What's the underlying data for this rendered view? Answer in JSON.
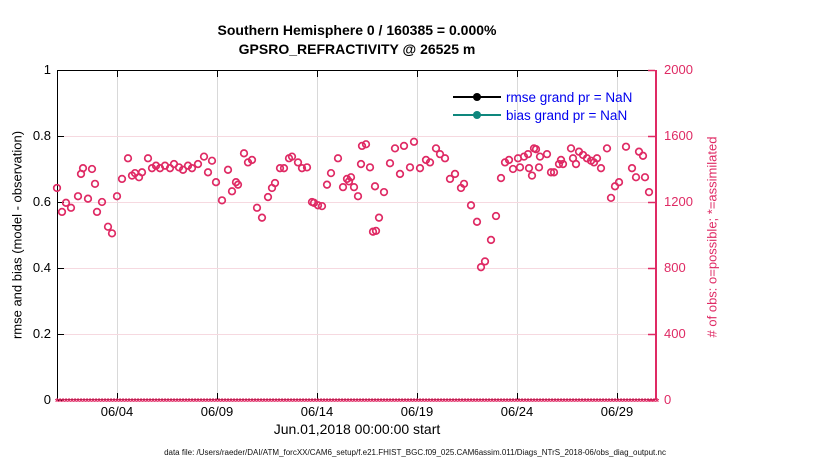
{
  "title": {
    "line1": "Southern Hemisphere 0 / 160385 = 0.000%",
    "line2": "GPSRO_REFRACTIVITY @ 26525 m"
  },
  "axes": {
    "left": {
      "label": "rmse and bias (model - observation)",
      "range": [
        0,
        1
      ],
      "ticks": [
        {
          "value": 0,
          "label": "0"
        },
        {
          "value": 0.2,
          "label": "0.2"
        },
        {
          "value": 0.4,
          "label": "0.4"
        },
        {
          "value": 0.6,
          "label": "0.6"
        },
        {
          "value": 0.8,
          "label": "0.8"
        },
        {
          "value": 1,
          "label": "1"
        }
      ]
    },
    "right": {
      "label": "# of obs: o=possible; *=assimilated",
      "range": [
        0,
        2000
      ],
      "ticks": [
        {
          "value": 0,
          "label": "0"
        },
        {
          "value": 400,
          "label": "400"
        },
        {
          "value": 800,
          "label": "800"
        },
        {
          "value": 1200,
          "label": "1200"
        },
        {
          "value": 1600,
          "label": "1600"
        },
        {
          "value": 2000,
          "label": "2000"
        }
      ]
    },
    "x": {
      "label": "Jun.01,2018 00:00:00 start",
      "range_days": [
        1,
        31
      ],
      "ticks": [
        {
          "day": 4,
          "label": "06/04"
        },
        {
          "day": 9,
          "label": "06/09"
        },
        {
          "day": 14,
          "label": "06/14"
        },
        {
          "day": 19,
          "label": "06/19"
        },
        {
          "day": 24,
          "label": "06/24"
        },
        {
          "day": 29,
          "label": "06/29"
        }
      ]
    }
  },
  "legend": [
    {
      "label": "rmse grand pr = NaN",
      "color": "#000000"
    },
    {
      "label": "bias grand pr = NaN",
      "color": "#0e877d"
    }
  ],
  "footer": "data file: /Users/raeder/DAI/ATM_forcXX/CAM6_setup/f.e21.FHIST_BGC.f09_025.CAM6assim.011/Diags_NTrS_2018-06/obs_diag_output.nc",
  "colors": {
    "accent_pink": "#df2a64",
    "legend_text_blue": "#0000ee",
    "bias_teal": "#0e877d",
    "rmse_black": "#000000",
    "grid_horizontal": "#f6d9e0",
    "grid_vertical": "#d9d9d9",
    "axis_black": "#000000"
  },
  "chart_data": {
    "type": "scatter",
    "title": "Southern Hemisphere 0 / 160385 = 0.000% — GPSRO_REFRACTIVITY @ 26525 m",
    "xlabel": "Jun.01,2018 00:00:00 start",
    "x_units": "day of June 2018, 6-hourly bins",
    "x_range_days": [
      1,
      31
    ],
    "ylabel_left": "rmse and bias (model - observation)",
    "ylim_left": [
      0,
      1
    ],
    "ylabel_right": "# of obs: o=possible; *=assimilated",
    "ylim_right": [
      0,
      2000
    ],
    "grid": true,
    "legend_position": "top-right inside",
    "series": [
      {
        "name": "possible-observations",
        "marker": "o",
        "axis": "right",
        "points": [
          [
            1.0,
            1285
          ],
          [
            1.25,
            1140
          ],
          [
            1.45,
            1195
          ],
          [
            1.7,
            1165
          ],
          [
            2.05,
            1235
          ],
          [
            2.2,
            1370
          ],
          [
            2.3,
            1405
          ],
          [
            2.55,
            1220
          ],
          [
            2.75,
            1400
          ],
          [
            2.9,
            1310
          ],
          [
            3.0,
            1140
          ],
          [
            3.25,
            1200
          ],
          [
            3.55,
            1050
          ],
          [
            3.75,
            1010
          ],
          [
            4.0,
            1235
          ],
          [
            4.25,
            1340
          ],
          [
            4.55,
            1465
          ],
          [
            4.75,
            1360
          ],
          [
            4.9,
            1375
          ],
          [
            5.1,
            1350
          ],
          [
            5.25,
            1380
          ],
          [
            5.55,
            1465
          ],
          [
            5.75,
            1405
          ],
          [
            5.95,
            1420
          ],
          [
            6.15,
            1405
          ],
          [
            6.4,
            1420
          ],
          [
            6.65,
            1405
          ],
          [
            6.85,
            1430
          ],
          [
            7.1,
            1410
          ],
          [
            7.3,
            1395
          ],
          [
            7.55,
            1420
          ],
          [
            7.75,
            1405
          ],
          [
            8.05,
            1430
          ],
          [
            8.35,
            1475
          ],
          [
            8.55,
            1380
          ],
          [
            8.75,
            1450
          ],
          [
            8.95,
            1320
          ],
          [
            9.25,
            1210
          ],
          [
            9.55,
            1395
          ],
          [
            9.75,
            1265
          ],
          [
            9.95,
            1320
          ],
          [
            10.05,
            1305
          ],
          [
            10.35,
            1495
          ],
          [
            10.55,
            1440
          ],
          [
            10.75,
            1455
          ],
          [
            11.0,
            1165
          ],
          [
            11.25,
            1105
          ],
          [
            11.55,
            1230
          ],
          [
            11.75,
            1285
          ],
          [
            11.9,
            1315
          ],
          [
            12.15,
            1405
          ],
          [
            12.35,
            1405
          ],
          [
            12.6,
            1465
          ],
          [
            12.75,
            1475
          ],
          [
            13.05,
            1440
          ],
          [
            13.25,
            1405
          ],
          [
            13.5,
            1410
          ],
          [
            13.75,
            1200
          ],
          [
            13.85,
            1195
          ],
          [
            14.05,
            1180
          ],
          [
            14.25,
            1175
          ],
          [
            14.5,
            1305
          ],
          [
            14.7,
            1375
          ],
          [
            15.05,
            1465
          ],
          [
            15.3,
            1290
          ],
          [
            15.5,
            1340
          ],
          [
            15.6,
            1325
          ],
          [
            15.7,
            1350
          ],
          [
            15.85,
            1290
          ],
          [
            16.05,
            1235
          ],
          [
            16.2,
            1430
          ],
          [
            16.25,
            1540
          ],
          [
            16.45,
            1550
          ],
          [
            16.65,
            1410
          ],
          [
            16.8,
            1020
          ],
          [
            16.9,
            1295
          ],
          [
            16.95,
            1025
          ],
          [
            17.1,
            1105
          ],
          [
            17.35,
            1260
          ],
          [
            17.65,
            1435
          ],
          [
            17.9,
            1525
          ],
          [
            18.15,
            1370
          ],
          [
            18.35,
            1540
          ],
          [
            18.65,
            1410
          ],
          [
            18.85,
            1565
          ],
          [
            19.15,
            1405
          ],
          [
            19.45,
            1455
          ],
          [
            19.65,
            1440
          ],
          [
            19.95,
            1525
          ],
          [
            20.15,
            1490
          ],
          [
            20.4,
            1465
          ],
          [
            20.65,
            1340
          ],
          [
            20.9,
            1370
          ],
          [
            21.2,
            1285
          ],
          [
            21.35,
            1310
          ],
          [
            21.7,
            1180
          ],
          [
            22.0,
            1080
          ],
          [
            22.2,
            805
          ],
          [
            22.4,
            840
          ],
          [
            22.7,
            970
          ],
          [
            22.95,
            1115
          ],
          [
            23.2,
            1345
          ],
          [
            23.4,
            1440
          ],
          [
            23.6,
            1455
          ],
          [
            23.8,
            1400
          ],
          [
            24.05,
            1465
          ],
          [
            24.15,
            1410
          ],
          [
            24.35,
            1475
          ],
          [
            24.55,
            1490
          ],
          [
            24.6,
            1405
          ],
          [
            24.75,
            1360
          ],
          [
            24.85,
            1525
          ],
          [
            24.95,
            1520
          ],
          [
            25.1,
            1410
          ],
          [
            25.15,
            1475
          ],
          [
            25.5,
            1490
          ],
          [
            25.7,
            1380
          ],
          [
            25.85,
            1380
          ],
          [
            26.1,
            1430
          ],
          [
            26.2,
            1455
          ],
          [
            26.3,
            1430
          ],
          [
            26.7,
            1525
          ],
          [
            26.8,
            1465
          ],
          [
            26.95,
            1430
          ],
          [
            27.1,
            1505
          ],
          [
            27.3,
            1485
          ],
          [
            27.5,
            1465
          ],
          [
            27.7,
            1450
          ],
          [
            27.85,
            1440
          ],
          [
            28.0,
            1465
          ],
          [
            28.2,
            1405
          ],
          [
            28.5,
            1525
          ],
          [
            28.7,
            1225
          ],
          [
            28.9,
            1295
          ],
          [
            29.1,
            1320
          ],
          [
            29.45,
            1535
          ],
          [
            29.75,
            1405
          ],
          [
            29.95,
            1350
          ],
          [
            30.1,
            1505
          ],
          [
            30.3,
            1480
          ],
          [
            30.4,
            1350
          ],
          [
            30.6,
            1260
          ]
        ]
      },
      {
        "name": "assimilated-observations",
        "marker": "*",
        "axis": "right",
        "constant_value": 0,
        "span_days": [
          1,
          31
        ]
      },
      {
        "name": "rmse",
        "legend": "rmse grand pr = NaN",
        "axis": "left",
        "values": "NaN"
      },
      {
        "name": "bias",
        "legend": "bias grand pr = NaN",
        "axis": "left",
        "values": "NaN"
      }
    ]
  }
}
